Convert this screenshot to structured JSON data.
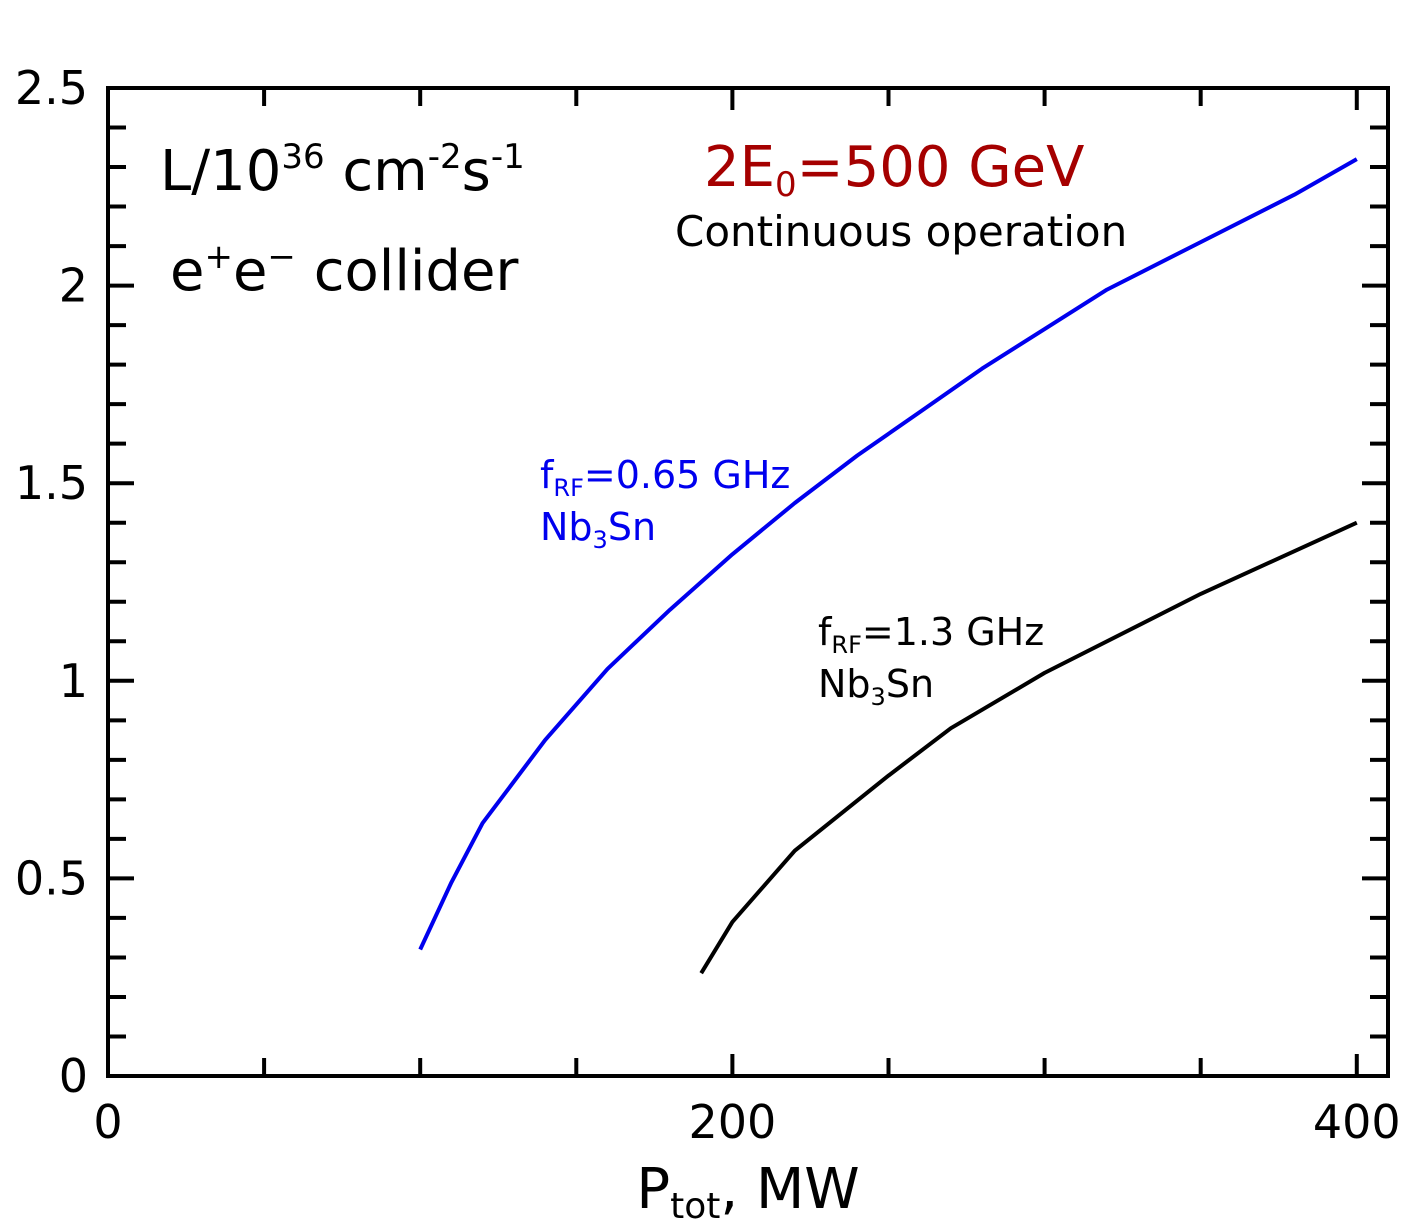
{
  "chart_data": {
    "type": "line",
    "title": "",
    "xlabel": {
      "main": "P",
      "sub": "tot",
      "rest": ", MW"
    },
    "ylabel": "",
    "xlim": [
      0,
      410
    ],
    "ylim": [
      0,
      2.5
    ],
    "x_tick_labels": [
      "0",
      "200",
      "400"
    ],
    "x_tick_values": [
      0,
      200,
      400
    ],
    "x_minor_step": 50,
    "y_tick_labels": [
      "0",
      "0.5",
      "1",
      "1.5",
      "2",
      "2.5"
    ],
    "y_tick_values": [
      0,
      0.5,
      1,
      1.5,
      2,
      2.5
    ],
    "y_minor_step": 0.1,
    "grid": false,
    "series": [
      {
        "name": "fRF=0.65 GHz Nb3Sn",
        "color": "#0000ee",
        "x": [
          100,
          110,
          120,
          140,
          160,
          180,
          200,
          220,
          240,
          260,
          280,
          300,
          320,
          350,
          380,
          400
        ],
        "y": [
          0.32,
          0.49,
          0.64,
          0.85,
          1.03,
          1.18,
          1.32,
          1.45,
          1.57,
          1.68,
          1.79,
          1.89,
          1.99,
          2.11,
          2.23,
          2.32
        ]
      },
      {
        "name": "fRF=1.3 GHz Nb3Sn",
        "color": "#000000",
        "x": [
          190,
          200,
          220,
          250,
          270,
          300,
          350,
          400
        ],
        "y": [
          0.26,
          0.39,
          0.57,
          0.76,
          0.88,
          1.02,
          1.22,
          1.4
        ]
      }
    ],
    "annotations": {
      "luminosity": {
        "base": "L/10",
        "exp1": "36",
        "mid": " cm",
        "exp2": "-2",
        "s": "s",
        "exp3": "-1"
      },
      "collider": {
        "e1": "e",
        "sup1": "+",
        "e2": "e",
        "sup2": "−",
        "rest": " collider"
      },
      "energy": {
        "pre": "2E",
        "sub": "0",
        "post": "=500 GeV",
        "color": "#a50000"
      },
      "operation": "Continuous operation",
      "blue_label": {
        "f": "f",
        "sub": "RF",
        "rest": "=0.65 GHz",
        "line2_pre": "Nb",
        "line2_sub": "3",
        "line2_post": "Sn"
      },
      "black_label": {
        "f": "f",
        "sub": "RF",
        "rest": "=1.3 GHz",
        "line2_pre": "Nb",
        "line2_sub": "3",
        "line2_post": "Sn"
      }
    }
  }
}
